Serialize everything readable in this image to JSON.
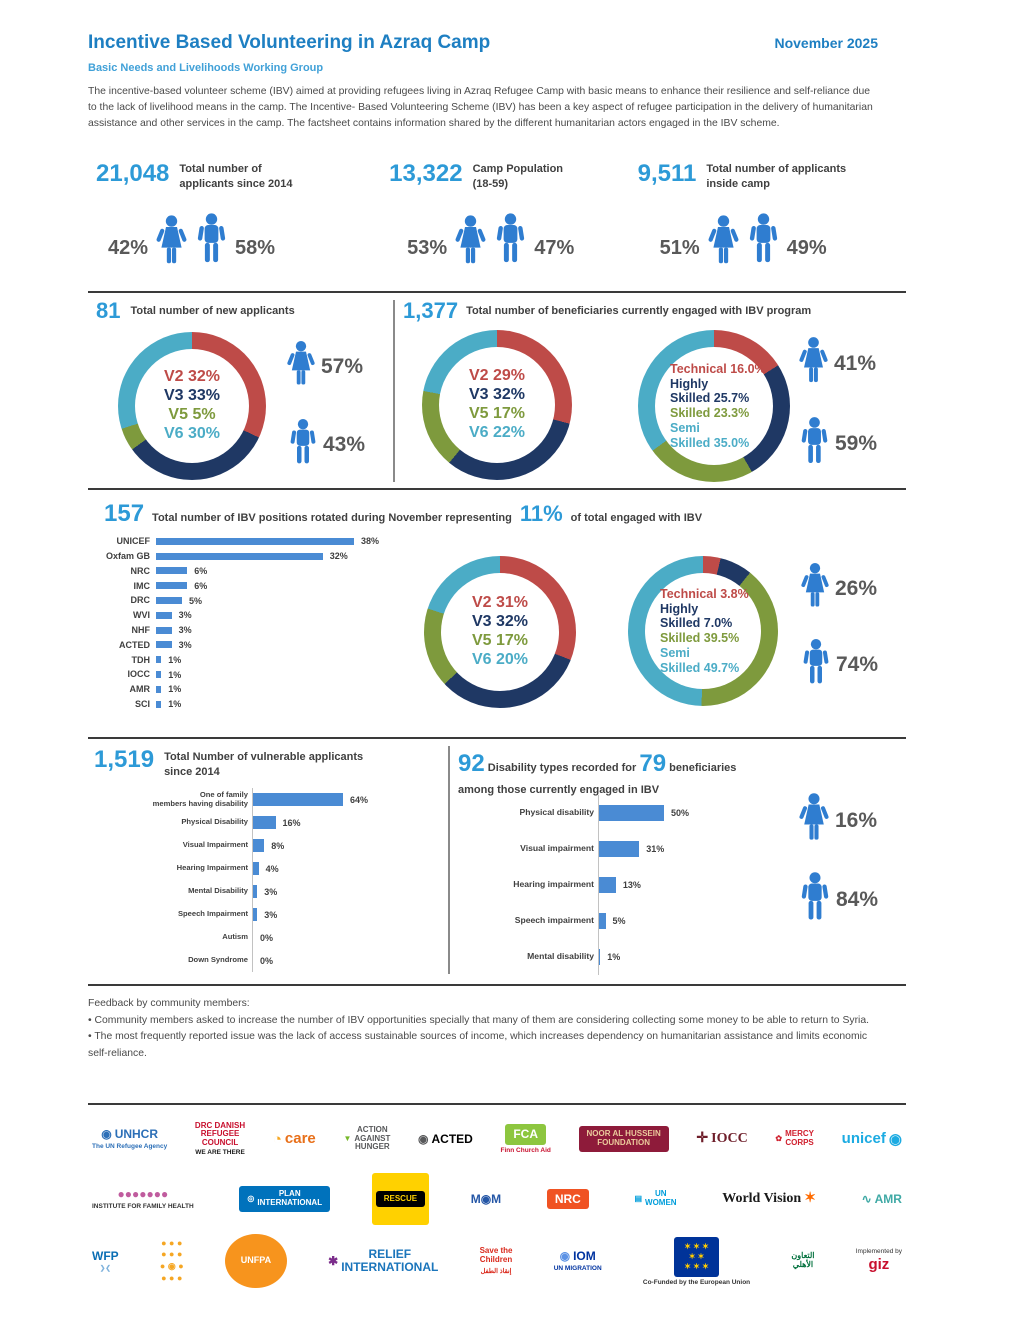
{
  "colors": {
    "title_blue": "#1E7FC2",
    "subtitle_blue": "#41A1D8",
    "number_blue": "#2D9AD7",
    "icon_blue": "#2F7DD0",
    "pct_gray": "#595959",
    "red": "#BE4B48",
    "navy": "#1F3864",
    "olive": "#7E9A3D",
    "teal": "#4BACC6",
    "bar_blue": "#4A8BD4",
    "text": "#4A4A4A"
  },
  "header": {
    "title": "Incentive Based Volunteering in Azraq Camp",
    "date": "November 2025",
    "subtitle": "Basic Needs and Livelihoods Working Group",
    "intro": "The incentive-based volunteer scheme (IBV) aimed at providing refugees living in Azraq Refugee Camp with basic means to enhance their resilience and self-reliance due to the lack of livelihood means in the camp. The Incentive- Based Volunteering Scheme (IBV) has been a key aspect of refugee participation in the delivery of humanitarian assistance and other services in the camp. The factsheet contains information shared by the different humanitarian actors engaged in the IBV scheme."
  },
  "key_stats": [
    {
      "number": "21,048",
      "label": "Total number of applicants since 2014",
      "female_pct": "42%",
      "male_pct": "58%"
    },
    {
      "number": "13,322",
      "label": "Camp Population (18-59)",
      "female_pct": "53%",
      "male_pct": "47%"
    },
    {
      "number": "9,511",
      "label": "Total number of applicants inside camp",
      "female_pct": "51%",
      "male_pct": "49%"
    }
  ],
  "sections": {
    "new_applicants": {
      "number": "81",
      "label": "Total number of new applicants",
      "female_pct": "57%",
      "male_pct": "43%"
    },
    "beneficiaries": {
      "number": "1,377",
      "label": "Total number of beneficiaries currently engaged with IBV program",
      "female_pct": "41%",
      "male_pct": "59%"
    },
    "rotation": {
      "number": "157",
      "text1": "Total number of IBV positions rotated during November representing",
      "pct": "11%",
      "text2": "of total engaged with IBV",
      "female_pct": "26%",
      "male_pct": "74%"
    },
    "vulnerable": {
      "number": "1,519",
      "label": "Total Number of vulnerable applicants since 2014"
    },
    "disability": {
      "number": "92",
      "text1": "Disability types recorded for",
      "number2": "79",
      "text2": "beneficiaries",
      "line2": "among those currently engaged in IBV",
      "female_pct": "16%",
      "male_pct": "84%"
    }
  },
  "feedback": {
    "title": "Feedback by community members:",
    "bullets": [
      "• Community members asked to increase the number of IBV opportunities specially that many of them are considering collecting some money to be able to return to Syria.",
      "• The most frequently reported issue was the lack of access sustainable sources of income, which increases dependency on humanitarian assistance and limits economic self-reliance."
    ]
  },
  "chart_data": [
    {
      "id": "new_applicants_donut",
      "type": "pie",
      "title": "New applicants by village",
      "labels": [
        "V2",
        "V3",
        "V5",
        "V6"
      ],
      "values": [
        32,
        33,
        5,
        30
      ],
      "slice_colors": [
        "red",
        "navy",
        "olive",
        "teal"
      ],
      "legend_lines": [
        [
          "V2 32%"
        ],
        [
          "V3 33%"
        ],
        [
          "V5 5%"
        ],
        [
          "V6 30%"
        ]
      ],
      "legend_position": "center"
    },
    {
      "id": "beneficiaries_village_donut",
      "type": "pie",
      "title": "Beneficiaries engaged with IBV by village",
      "labels": [
        "V2",
        "V3",
        "V5",
        "V6"
      ],
      "values": [
        29,
        32,
        17,
        22
      ],
      "slice_colors": [
        "red",
        "navy",
        "olive",
        "teal"
      ],
      "legend_lines": [
        [
          "V2 29%"
        ],
        [
          "V3 32%"
        ],
        [
          "V5 17%"
        ],
        [
          "V6 22%"
        ]
      ],
      "legend_position": "center"
    },
    {
      "id": "beneficiaries_skills_donut",
      "type": "pie",
      "title": "Beneficiaries engaged with IBV by skill level",
      "labels": [
        "Technical",
        "Highly Skilled",
        "Skilled",
        "Semi Skilled"
      ],
      "values": [
        16.0,
        25.7,
        23.3,
        35.0
      ],
      "slice_colors": [
        "red",
        "navy",
        "olive",
        "teal"
      ],
      "legend_lines": [
        [
          "Technical 16.0%"
        ],
        [
          "Highly",
          "Skilled 25.7%"
        ],
        [
          "Skilled 23.3%"
        ],
        [
          "Semi",
          "Skilled 35.0%"
        ]
      ],
      "legend_position": "center"
    },
    {
      "id": "rotation_orgs_bar",
      "type": "bar",
      "title": "IBV positions rotated during November by organization",
      "categories": [
        "UNICEF",
        "Oxfam GB",
        "NRC",
        "IMC",
        "DRC",
        "WVI",
        "NHF",
        "ACTED",
        "TDH",
        "IOCC",
        "AMR",
        "SCI"
      ],
      "values": [
        38,
        32,
        6,
        6,
        5,
        3,
        3,
        3,
        1,
        1,
        1,
        1
      ],
      "unit": "%",
      "orientation": "horizontal"
    },
    {
      "id": "rotation_village_donut",
      "type": "pie",
      "title": "Rotated positions by village",
      "labels": [
        "V2",
        "V3",
        "V5",
        "V6"
      ],
      "values": [
        31,
        32,
        17,
        20
      ],
      "slice_colors": [
        "red",
        "navy",
        "olive",
        "teal"
      ],
      "legend_lines": [
        [
          "V2 31%"
        ],
        [
          "V3 32%"
        ],
        [
          "V5 17%"
        ],
        [
          "V6 20%"
        ]
      ],
      "legend_position": "center"
    },
    {
      "id": "rotation_skills_donut",
      "type": "pie",
      "title": "Rotated positions by skill level",
      "labels": [
        "Technical",
        "Highly Skilled",
        "Skilled",
        "Semi Skilled"
      ],
      "values": [
        3.8,
        7.0,
        39.5,
        49.7
      ],
      "slice_colors": [
        "red",
        "navy",
        "olive",
        "teal"
      ],
      "legend_lines": [
        [
          "Technical 3.8%"
        ],
        [
          "Highly",
          "Skilled 7.0%"
        ],
        [
          "Skilled 39.5%"
        ],
        [
          "Semi",
          "Skilled 49.7%"
        ]
      ],
      "legend_position": "center"
    },
    {
      "id": "vulnerable_bar",
      "type": "bar",
      "title": "Total Number of vulnerable applicants since 2014 (1,519)",
      "categories": [
        "One of family\nmembers having disability",
        "Physical Disability",
        "Visual Impairment",
        "Hearing Impairment",
        "Mental Disability",
        "Speech Impairment",
        "Autism",
        "Down Syndrome"
      ],
      "values": [
        64,
        16,
        8,
        4,
        3,
        3,
        0,
        0
      ],
      "unit": "%",
      "orientation": "horizontal"
    },
    {
      "id": "disability_types_bar",
      "type": "bar",
      "title": "Disability types recorded for beneficiaries engaged in IBV",
      "categories": [
        "Physical disability",
        "Visual impairment",
        "Hearing impairment",
        "Speech impairment",
        "Mental disability"
      ],
      "values": [
        50,
        31,
        13,
        5,
        1
      ],
      "unit": "%",
      "orientation": "horizontal"
    }
  ],
  "logos": {
    "rows": [
      [
        {
          "name": "unhcr-logo",
          "glyph": "◉",
          "glyph_color": "#2C6FB7",
          "label": "UNHCR",
          "fg": "#2C6FB7",
          "sub": "The UN Refugee Agency",
          "sub_color": "#2C6FB7"
        },
        {
          "name": "drc-logo",
          "label": "DRC DANISH\nREFUGEE\nCOUNCIL",
          "fg": "#C8102E",
          "label_cls": "small",
          "sub": "WE ARE THERE",
          "sub_color": "#1A1A1A"
        },
        {
          "name": "care-logo",
          "glyph": "◔",
          "glyph_color": "#F7A823",
          "label": "care",
          "fg": "#E8701A",
          "label_cls": "lc"
        },
        {
          "name": "action-against-hunger-logo",
          "glyph": "▼",
          "glyph_color": "#76B82A",
          "label": "ACTION\nAGAINST\nHUNGER",
          "fg": "#58595B",
          "label_cls": "small"
        },
        {
          "name": "acted-logo",
          "glyph": "◉",
          "glyph_color": "#58595B",
          "label": "ACTED",
          "fg": "#000000"
        },
        {
          "name": "fca-logo",
          "label": "FCA",
          "fg": "#FFFFFF",
          "label_bg": "#8DC63F",
          "sub": "Finn Church Aid",
          "sub_color": "#C8102E"
        },
        {
          "name": "noor-al-hussein-foundation-logo",
          "label": "NOOR AL HUSSEIN\nFOUNDATION",
          "fg": "#EBCB9C",
          "label_bg": "#8E1B3A",
          "label_cls": "small"
        },
        {
          "name": "iocc-logo",
          "glyph": "✛",
          "glyph_color": "#6E1E2A",
          "label": "IOCC",
          "fg": "#6E1E2A",
          "label_cls": "serif"
        },
        {
          "name": "mercy-corps-logo",
          "glyph": "✿",
          "glyph_color": "#D0202E",
          "label": "MERCY\nCORPS",
          "fg": "#D0202E",
          "label_cls": "small"
        },
        {
          "name": "unicef-logo",
          "label": "unicef",
          "fg": "#1CABE2",
          "label_cls": "lc",
          "suffix_glyph": "◉",
          "suffix_color": "#1CABE2"
        }
      ],
      [
        {
          "name": "institute-family-health-logo",
          "label": "●●●●●●●",
          "fg": "#C05C9E",
          "sub": "INSTITUTE FOR FAMILY HEALTH",
          "sub_color": "#333333"
        },
        {
          "name": "plan-international-logo",
          "glyph": "◎",
          "glyph_color": "#FFFFFF",
          "label": "PLAN\nINTERNATIONAL",
          "fg": "#FFFFFF",
          "label_bg": "#0072BC",
          "label_cls": "small"
        },
        {
          "name": "irc-rescue-logo",
          "label": "RESCUE",
          "fg": "#FFD100",
          "label_bg": "#000000",
          "bg": "#FFD100",
          "label_cls": "small"
        },
        {
          "name": "imc-logo",
          "label": "M◉M",
          "fg": "#2456A6"
        },
        {
          "name": "nrc-logo",
          "label": "NRC",
          "fg": "#FFFFFF",
          "label_bg": "#F05323"
        },
        {
          "name": "un-women-logo",
          "glyph": "▤",
          "glyph_color": "#009EDB",
          "label": "UN\nWOMEN",
          "fg": "#009EDB",
          "label_cls": "small"
        },
        {
          "name": "world-vision-logo",
          "label": "World Vision",
          "fg": "#1A1A1A",
          "label_cls": "serif",
          "suffix_glyph": "✶",
          "suffix_color": "#FF6B00"
        },
        {
          "name": "amr-logo",
          "glyph": "∿",
          "glyph_color": "#3FA9A5",
          "label": "AMR",
          "fg": "#3FA9A5"
        }
      ],
      [
        {
          "name": "wfp-logo",
          "label": "WFP",
          "fg": "#0A6EB4",
          "sub": "❯❮",
          "sub_color": "#7FB2DC"
        },
        {
          "name": "dots-grid-logo",
          "label": "● ● ●\n● ● ●\n● ◉ ●\n● ● ●",
          "fg": "#F5A623",
          "label_cls": "dots"
        },
        {
          "name": "unfpa-logo",
          "label": "UNFPA",
          "fg": "#FFFFFF",
          "label_bg": "#F7941D",
          "label_cls": "circle"
        },
        {
          "name": "relief-international-logo",
          "glyph": "✱",
          "glyph_color": "#7B2D8B",
          "label": "RELIEF\nINTERNATIONAL",
          "fg": "#1B75BB"
        },
        {
          "name": "save-the-children-logo",
          "label": "Save the\nChildren",
          "fg": "#DA291C",
          "label_cls": "small",
          "sub": "إنقاذ الطفل",
          "sub_color": "#DA291C"
        },
        {
          "name": "iom-logo",
          "glyph": "◉",
          "glyph_color": "#5B92E5",
          "label": "IOM",
          "fg": "#0033A0",
          "sub": "UN MIGRATION",
          "sub_color": "#0033A0"
        },
        {
          "name": "eu-logo",
          "label": "✶ ✶ ✶\n✶     ✶\n✶ ✶ ✶",
          "fg": "#FFCC00",
          "label_bg": "#003399",
          "label_cls": "eu",
          "sub": "Co-Funded by the European Union",
          "sub_color": "#333333"
        },
        {
          "name": "taawon-logo",
          "label": "التعاون\nالأهلي",
          "fg": "#00703C",
          "label_cls": "small"
        },
        {
          "name": "giz-logo",
          "sub_top": "Implemented by",
          "label": "giz",
          "fg": "#C8102E",
          "label_cls": "lc"
        }
      ]
    ]
  }
}
